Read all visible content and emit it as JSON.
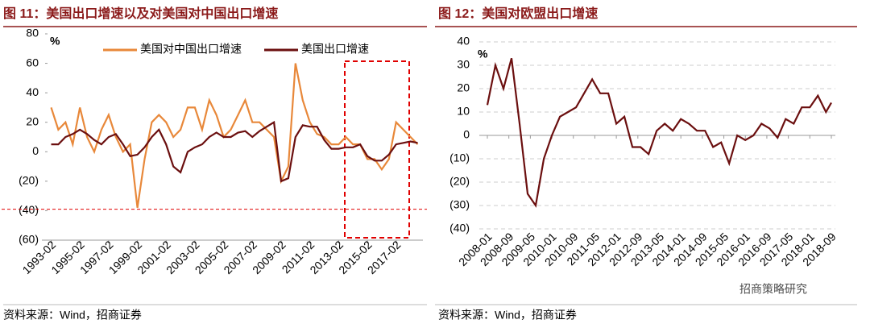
{
  "chart_data": [
    {
      "type": "line",
      "title": "图 11：美国出口增速以及对美国对中国出口增速",
      "source": "资料来源：Wind，招商证券",
      "ylabel": "%",
      "x": [
        "1993-02",
        "1993-08",
        "1994-02",
        "1994-08",
        "1995-02",
        "1995-08",
        "1996-02",
        "1996-08",
        "1997-02",
        "1997-08",
        "1998-02",
        "1998-08",
        "1999-02",
        "1999-08",
        "2000-02",
        "2000-08",
        "2001-02",
        "2001-08",
        "2002-02",
        "2002-08",
        "2003-02",
        "2003-08",
        "2004-02",
        "2004-08",
        "2005-02",
        "2005-08",
        "2006-02",
        "2006-08",
        "2007-02",
        "2007-08",
        "2008-02",
        "2008-08",
        "2009-02",
        "2009-08",
        "2010-02",
        "2010-08",
        "2011-02",
        "2011-08",
        "2012-02",
        "2012-08",
        "2013-02",
        "2013-08",
        "2014-02",
        "2014-08",
        "2015-02",
        "2015-08",
        "2016-02",
        "2016-08",
        "2017-02",
        "2017-08",
        "2018-02",
        "2018-08"
      ],
      "series": [
        {
          "name": "美国对中国出口增速",
          "color": "#e8883a",
          "values": [
            30,
            15,
            20,
            5,
            30,
            10,
            0,
            15,
            25,
            10,
            0,
            5,
            -38,
            -5,
            20,
            25,
            20,
            10,
            15,
            30,
            30,
            15,
            35,
            25,
            10,
            15,
            25,
            35,
            20,
            20,
            15,
            10,
            -20,
            -10,
            60,
            35,
            20,
            12,
            10,
            5,
            5,
            10,
            5,
            5,
            -5,
            -5,
            -12,
            -5,
            20,
            15,
            10,
            5
          ]
        },
        {
          "name": "美国出口增速",
          "color": "#6b0f0f",
          "values": [
            5,
            5,
            10,
            12,
            15,
            12,
            8,
            5,
            10,
            12,
            5,
            -3,
            -2,
            3,
            10,
            15,
            5,
            -10,
            -14,
            0,
            3,
            5,
            10,
            13,
            10,
            10,
            13,
            14,
            10,
            14,
            17,
            20,
            -20,
            -18,
            10,
            18,
            17,
            17,
            8,
            2,
            2,
            3,
            3,
            5,
            -3,
            -6,
            -6,
            -2,
            5,
            6,
            7,
            6
          ]
        }
      ],
      "xlim": [
        "1993-01",
        "2018-09"
      ],
      "xticks": [
        "1993-02",
        "1995-02",
        "1997-02",
        "1999-02",
        "2001-02",
        "2003-02",
        "2005-02",
        "2007-02",
        "2009-02",
        "2011-02",
        "2013-02",
        "2015-02",
        "2017-02"
      ],
      "ylim": [
        -60,
        80
      ],
      "yticks": [
        80,
        60,
        40,
        20,
        0,
        {
          "value": -20,
          "label": "(20)"
        },
        {
          "value": -40,
          "label": "(40)"
        },
        {
          "value": -60,
          "label": "(60)"
        }
      ],
      "negative_tick_color": "#e00000",
      "grid": false,
      "legend": "top",
      "hline": -39,
      "hline_color": "#e00000"
    },
    {
      "type": "line",
      "title": "图 12：美国对欧盟出口增速",
      "source": "资料来源：Wind，招商证券",
      "ylabel": "%",
      "watermark": "招商策略研究",
      "x": [
        "2008-01",
        "2008-04",
        "2008-07",
        "2008-10",
        "2009-01",
        "2009-04",
        "2009-07",
        "2009-10",
        "2010-01",
        "2010-04",
        "2010-07",
        "2010-10",
        "2011-01",
        "2011-04",
        "2011-07",
        "2011-10",
        "2012-01",
        "2012-04",
        "2012-07",
        "2012-10",
        "2013-01",
        "2013-04",
        "2013-07",
        "2013-10",
        "2014-01",
        "2014-04",
        "2014-07",
        "2014-10",
        "2015-01",
        "2015-04",
        "2015-07",
        "2015-10",
        "2016-01",
        "2016-04",
        "2016-07",
        "2016-10",
        "2017-01",
        "2017-04",
        "2017-07",
        "2017-10",
        "2018-01",
        "2018-04",
        "2018-07",
        "2018-09"
      ],
      "series": [
        {
          "color": "#6b0f0f",
          "values": [
            13,
            30,
            20,
            33,
            5,
            -25,
            -30,
            -10,
            0,
            8,
            10,
            12,
            18,
            24,
            18,
            18,
            5,
            8,
            -5,
            -5,
            -8,
            2,
            5,
            2,
            7,
            5,
            2,
            2,
            -5,
            -3,
            -12,
            0,
            -2,
            0,
            5,
            3,
            -1,
            7,
            5,
            12,
            12,
            17,
            10,
            14
          ]
        }
      ],
      "xlim": [
        "2008-01",
        "2018-09"
      ],
      "xticks": [
        "2008-01",
        "2008-09",
        "2009-05",
        "2010-01",
        "2010-09",
        "2011-05",
        "2012-01",
        "2012-09",
        "2013-05",
        "2014-01",
        "2014-09",
        "2015-05",
        "2016-01",
        "2016-09",
        "2017-05",
        "2018-01",
        "2018-09"
      ],
      "ylim": [
        -40,
        40
      ],
      "yticks": [
        40,
        30,
        20,
        10,
        0,
        {
          "value": -10,
          "label": "(10)"
        },
        {
          "value": -20,
          "label": "(20)"
        },
        {
          "value": -30,
          "label": "(30)"
        },
        {
          "value": -40,
          "label": "(40)"
        }
      ],
      "negative_tick_color": "#e00000",
      "grid": true
    }
  ]
}
